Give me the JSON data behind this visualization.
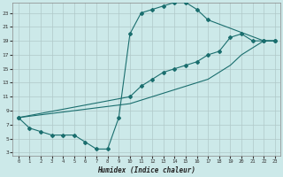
{
  "xlabel": "Humidex (Indice chaleur)",
  "bg_color": "#cce9e9",
  "grid_color": "#b0c8c8",
  "line_color": "#1a6e6e",
  "xlim": [
    -0.5,
    23.5
  ],
  "ylim": [
    2.5,
    24.5
  ],
  "xticks": [
    0,
    1,
    2,
    3,
    4,
    5,
    6,
    7,
    8,
    9,
    10,
    11,
    12,
    13,
    14,
    15,
    16,
    17,
    18,
    19,
    20,
    21,
    22,
    23
  ],
  "yticks": [
    3,
    5,
    7,
    9,
    11,
    13,
    15,
    17,
    19,
    21,
    23
  ],
  "curve1_x": [
    0,
    1,
    2,
    3,
    4,
    5,
    6,
    7,
    8,
    9,
    10,
    11,
    12,
    13,
    14,
    15,
    16,
    17,
    22,
    23
  ],
  "curve1_y": [
    8,
    6.5,
    6,
    5.5,
    5.5,
    5.5,
    4.5,
    3.5,
    3.5,
    8,
    20,
    23,
    23.5,
    24,
    24.5,
    24.5,
    23.5,
    22,
    19,
    19
  ],
  "curve2_x": [
    0,
    10,
    11,
    12,
    13,
    14,
    15,
    16,
    17,
    18,
    19,
    20,
    21,
    22,
    23
  ],
  "curve2_y": [
    8,
    11,
    12.5,
    13.5,
    14.5,
    15,
    15.5,
    16,
    17,
    17.5,
    19.5,
    20,
    19,
    19,
    19
  ],
  "curve3_x": [
    0,
    10,
    11,
    12,
    13,
    14,
    15,
    16,
    17,
    18,
    19,
    20,
    21,
    22,
    23
  ],
  "curve3_y": [
    8,
    10,
    10.5,
    11,
    11.5,
    12,
    12.5,
    13,
    13.5,
    14.5,
    15.5,
    17,
    18,
    19,
    19
  ]
}
